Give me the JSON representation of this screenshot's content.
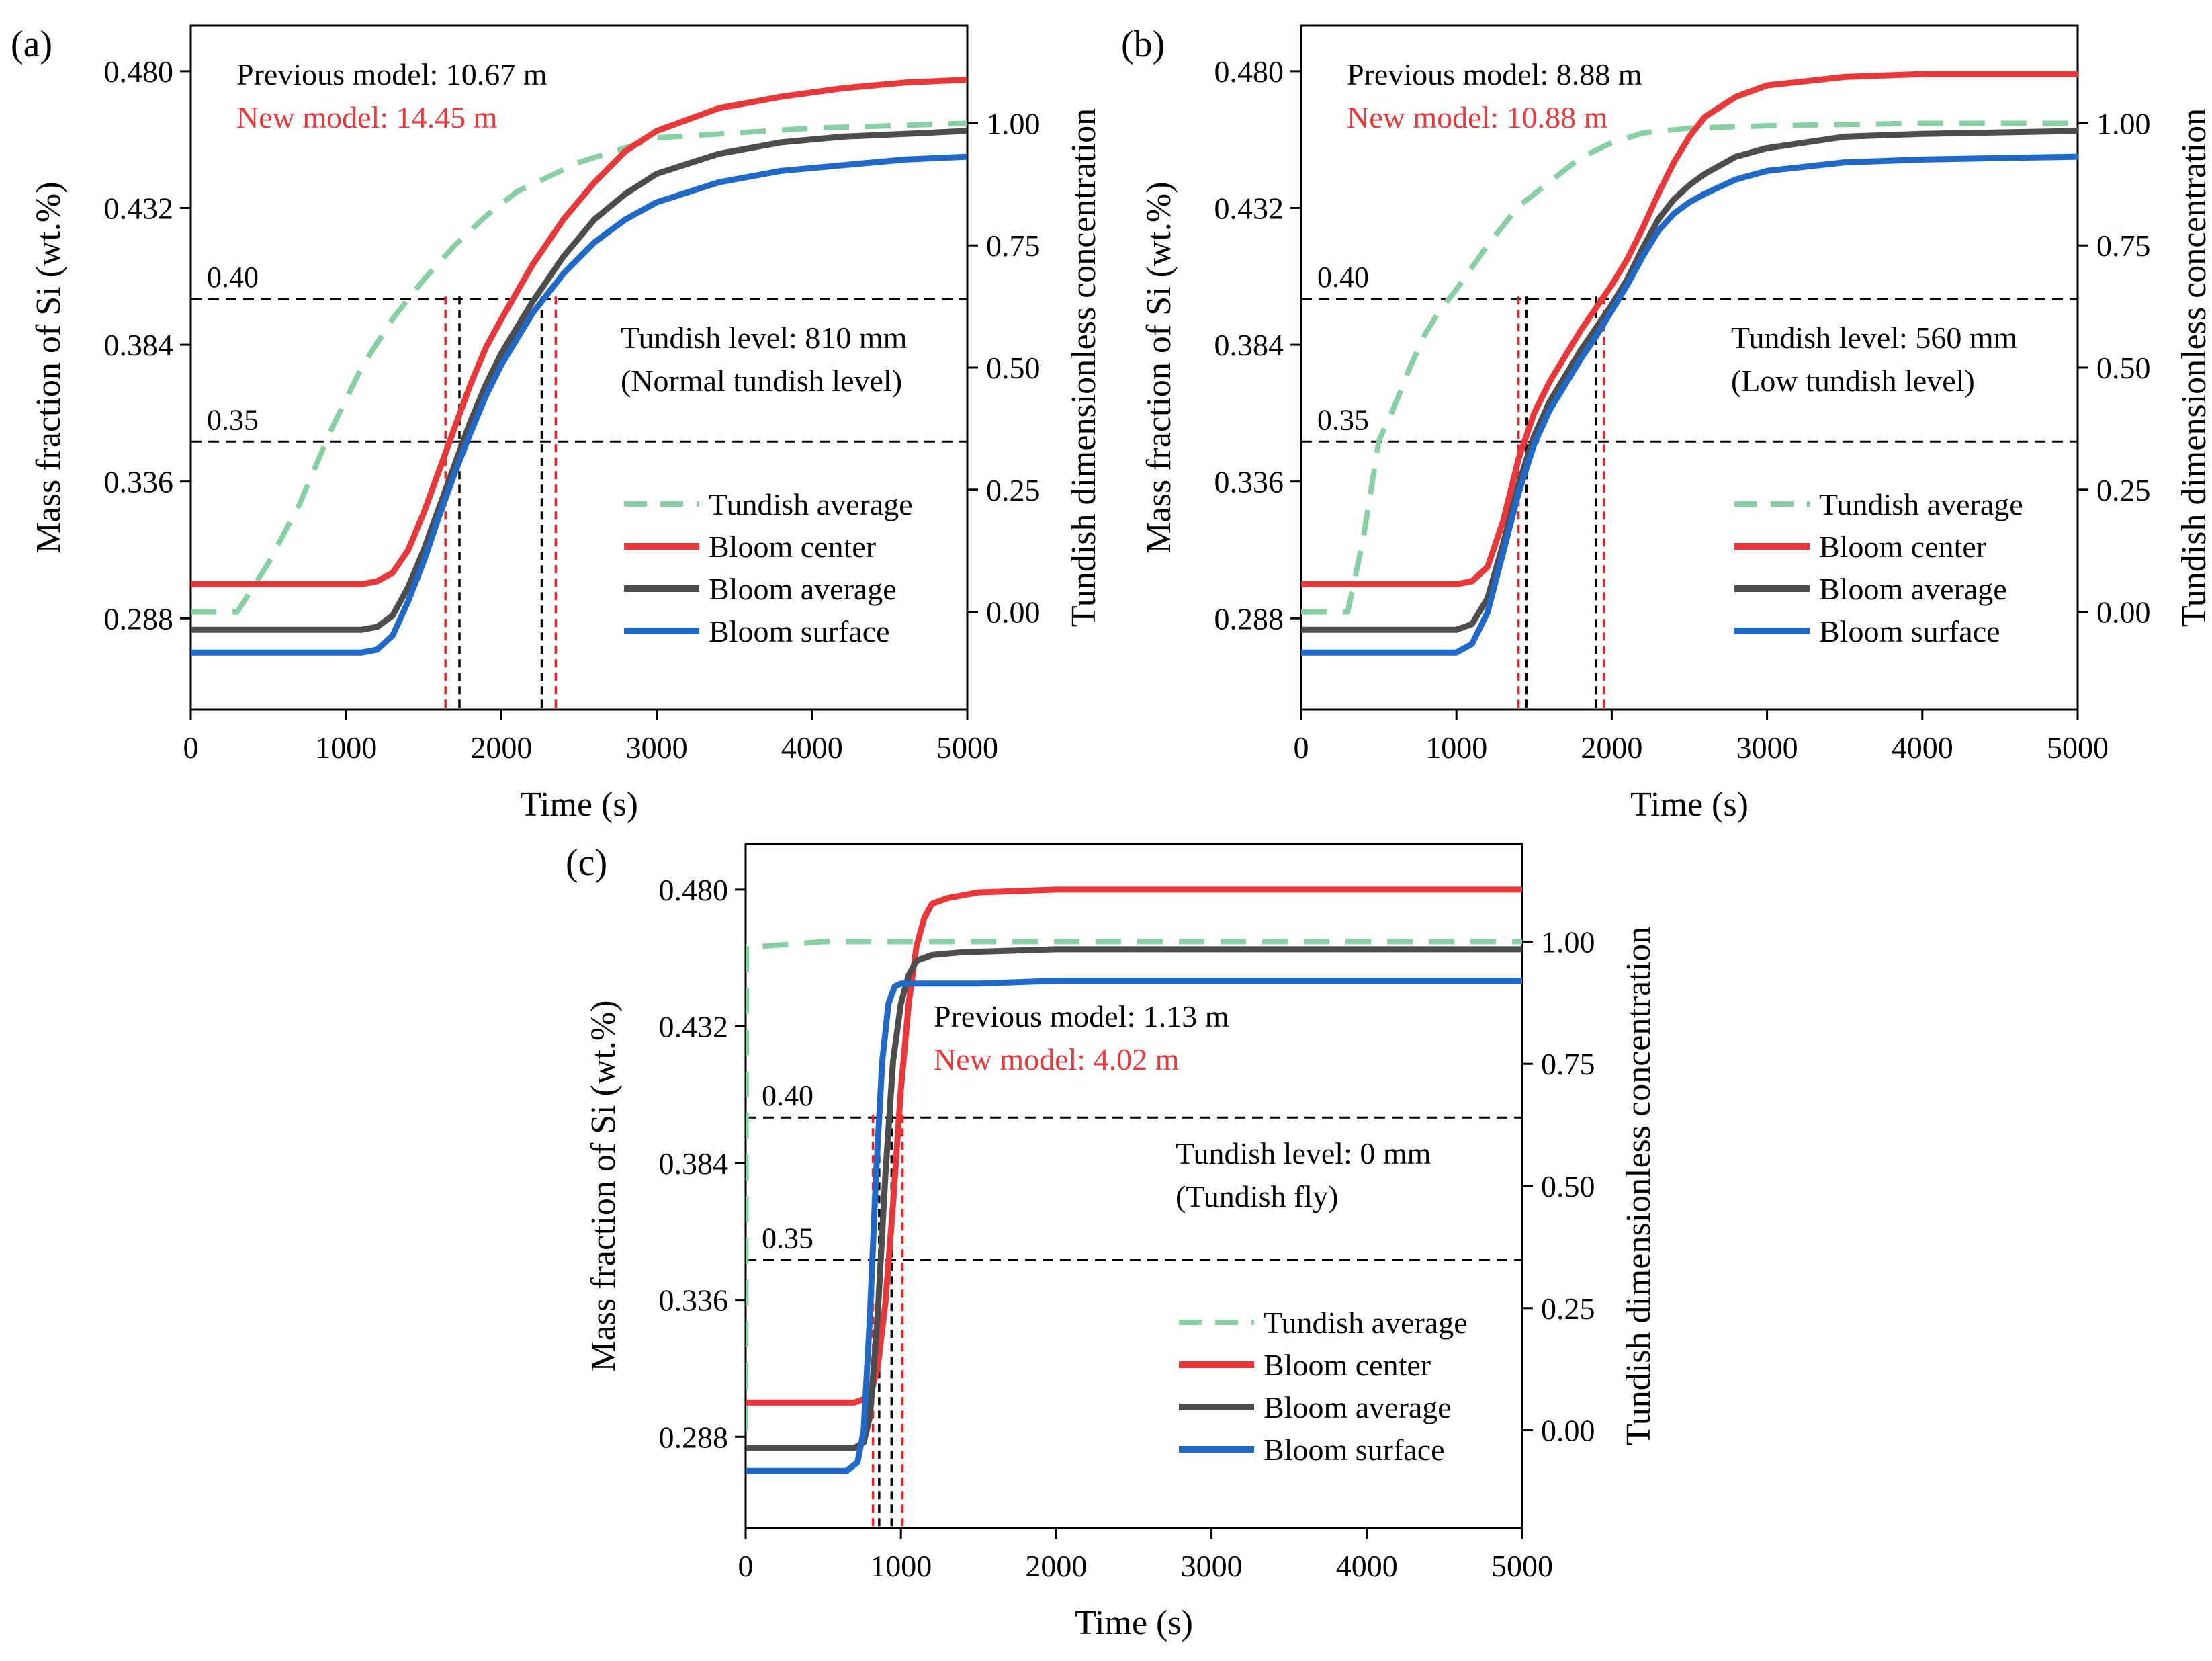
{
  "chart_data": [
    {
      "panel_label": "(a)",
      "type": "line",
      "xlabel": "Time (s)",
      "ylabel": "Mass fraction of Si (wt.%)",
      "ylabel_right": "Tundish dimensionless concentration",
      "xlim": [
        0,
        5000
      ],
      "ylim": [
        0.256,
        0.496
      ],
      "ylim_right": [
        -0.2,
        1.2
      ],
      "xticks": [
        0,
        1000,
        2000,
        3000,
        4000,
        5000
      ],
      "xtick_labels": [
        "0",
        "1000",
        "2000",
        "3000",
        "4000",
        "5000"
      ],
      "yticks": [
        0.288,
        0.336,
        0.384,
        0.432,
        0.48
      ],
      "ytick_labels": [
        "0.288",
        "0.336",
        "0.384",
        "0.432",
        "0.480"
      ],
      "yticks_right": [
        0,
        0.25,
        0.5,
        0.75,
        1.0
      ],
      "ytick_labels_right": [
        "0.00",
        "0.25",
        "0.50",
        "0.75",
        "1.00"
      ],
      "threshold_lines": [
        {
          "y": 0.4,
          "label": "0.40"
        },
        {
          "y": 0.35,
          "label": "0.35"
        }
      ],
      "vertical_markers": [
        {
          "x": 1640,
          "color": "#e8242a"
        },
        {
          "x": 1730,
          "color": "#000000"
        },
        {
          "x": 2260,
          "color": "#000000"
        },
        {
          "x": 2350,
          "color": "#e8242a"
        }
      ],
      "annotations": {
        "previous_model": "Previous model: 10.67 m",
        "new_model": "New model: 14.45 m",
        "tundish_level": "Tundish level: 810 mm",
        "tundish_note": "(Normal tundish level)"
      },
      "legend": [
        "Tundish average",
        "Bloom center",
        "Bloom average",
        "Bloom surface"
      ],
      "legend_position": "lower-right",
      "series": [
        {
          "name": "Tundish average",
          "axis": "right",
          "style": "dashed",
          "color": "#88d0a4",
          "x": [
            0,
            300,
            500,
            700,
            900,
            1100,
            1300,
            1500,
            1700,
            1900,
            2100,
            2300,
            2500,
            2800,
            3000,
            3500,
            4000,
            4500,
            5000
          ],
          "y": [
            0.0,
            0.0,
            0.1,
            0.22,
            0.37,
            0.5,
            0.6,
            0.68,
            0.75,
            0.81,
            0.86,
            0.89,
            0.92,
            0.95,
            0.97,
            0.98,
            0.99,
            0.995,
            1.0
          ]
        },
        {
          "name": "Bloom center",
          "axis": "left",
          "style": "solid",
          "color": "#e8383a",
          "x": [
            0,
            1000,
            1100,
            1200,
            1300,
            1400,
            1500,
            1600,
            1700,
            1800,
            1900,
            2000,
            2200,
            2400,
            2600,
            2800,
            3000,
            3400,
            3800,
            4200,
            4600,
            5000
          ],
          "y": [
            0.3,
            0.3,
            0.3,
            0.301,
            0.304,
            0.312,
            0.325,
            0.34,
            0.355,
            0.37,
            0.383,
            0.393,
            0.412,
            0.428,
            0.441,
            0.452,
            0.459,
            0.467,
            0.471,
            0.474,
            0.476,
            0.477
          ]
        },
        {
          "name": "Bloom average",
          "axis": "left",
          "style": "solid",
          "color": "#4d4d4d",
          "x": [
            0,
            1000,
            1100,
            1200,
            1300,
            1400,
            1500,
            1600,
            1700,
            1800,
            1900,
            2000,
            2200,
            2400,
            2600,
            2800,
            3000,
            3400,
            3800,
            4200,
            4600,
            5000
          ],
          "y": [
            0.284,
            0.284,
            0.284,
            0.285,
            0.289,
            0.299,
            0.312,
            0.327,
            0.342,
            0.357,
            0.37,
            0.381,
            0.399,
            0.415,
            0.428,
            0.437,
            0.444,
            0.451,
            0.455,
            0.457,
            0.458,
            0.459
          ]
        },
        {
          "name": "Bloom surface",
          "axis": "left",
          "style": "solid",
          "color": "#2069c9",
          "x": [
            0,
            1000,
            1100,
            1200,
            1300,
            1400,
            1500,
            1600,
            1700,
            1800,
            1900,
            2000,
            2200,
            2400,
            2600,
            2800,
            3000,
            3400,
            3800,
            4200,
            4600,
            5000
          ],
          "y": [
            0.276,
            0.276,
            0.276,
            0.277,
            0.282,
            0.294,
            0.308,
            0.324,
            0.339,
            0.353,
            0.366,
            0.377,
            0.395,
            0.409,
            0.42,
            0.428,
            0.434,
            0.441,
            0.445,
            0.447,
            0.449,
            0.45
          ]
        }
      ]
    },
    {
      "panel_label": "(b)",
      "type": "line",
      "xlabel": "Time (s)",
      "ylabel": "Mass fraction of Si (wt.%)",
      "ylabel_right": "Tundish dimensionless concentration",
      "xlim": [
        0,
        5000
      ],
      "ylim": [
        0.256,
        0.496
      ],
      "ylim_right": [
        -0.2,
        1.2
      ],
      "xticks": [
        0,
        1000,
        2000,
        3000,
        4000,
        5000
      ],
      "xtick_labels": [
        "0",
        "1000",
        "2000",
        "3000",
        "4000",
        "5000"
      ],
      "yticks": [
        0.288,
        0.336,
        0.384,
        0.432,
        0.48
      ],
      "ytick_labels": [
        "0.288",
        "0.336",
        "0.384",
        "0.432",
        "0.480"
      ],
      "yticks_right": [
        0,
        0.25,
        0.5,
        0.75,
        1.0
      ],
      "ytick_labels_right": [
        "0.00",
        "0.25",
        "0.50",
        "0.75",
        "1.00"
      ],
      "threshold_lines": [
        {
          "y": 0.4,
          "label": "0.40"
        },
        {
          "y": 0.35,
          "label": "0.35"
        }
      ],
      "vertical_markers": [
        {
          "x": 1400,
          "color": "#e8242a"
        },
        {
          "x": 1450,
          "color": "#000000"
        },
        {
          "x": 1900,
          "color": "#000000"
        },
        {
          "x": 1950,
          "color": "#e8242a"
        }
      ],
      "annotations": {
        "previous_model": "Previous model: 8.88 m",
        "new_model": "New model: 10.88 m",
        "tundish_level": "Tundish level: 560 mm",
        "tundish_note": "(Low tundish level)"
      },
      "legend": [
        "Tundish average",
        "Bloom center",
        "Bloom average",
        "Bloom surface"
      ],
      "legend_position": "lower-right",
      "series": [
        {
          "name": "Tundish average",
          "axis": "right",
          "style": "dashed",
          "color": "#88d0a4",
          "x": [
            0,
            300,
            400,
            500,
            600,
            700,
            800,
            900,
            1000,
            1200,
            1400,
            1600,
            1800,
            2000,
            2200,
            2500,
            3000,
            4000,
            5000
          ],
          "y": [
            0.0,
            0.0,
            0.15,
            0.35,
            0.42,
            0.5,
            0.57,
            0.62,
            0.66,
            0.75,
            0.83,
            0.88,
            0.93,
            0.96,
            0.98,
            0.99,
            0.995,
            1.0,
            1.0
          ]
        },
        {
          "name": "Bloom center",
          "axis": "left",
          "style": "solid",
          "color": "#e8383a",
          "x": [
            0,
            1000,
            1100,
            1200,
            1300,
            1400,
            1500,
            1600,
            1700,
            1800,
            1900,
            2000,
            2100,
            2200,
            2300,
            2400,
            2500,
            2600,
            2800,
            3000,
            3500,
            4000,
            5000
          ],
          "y": [
            0.3,
            0.3,
            0.301,
            0.306,
            0.322,
            0.344,
            0.36,
            0.371,
            0.38,
            0.389,
            0.397,
            0.405,
            0.414,
            0.425,
            0.437,
            0.448,
            0.457,
            0.464,
            0.471,
            0.475,
            0.478,
            0.479,
            0.479
          ]
        },
        {
          "name": "Bloom average",
          "axis": "left",
          "style": "solid",
          "color": "#4d4d4d",
          "x": [
            0,
            1000,
            1100,
            1200,
            1300,
            1400,
            1500,
            1600,
            1700,
            1800,
            1900,
            2000,
            2100,
            2200,
            2300,
            2400,
            2500,
            2600,
            2800,
            3000,
            3500,
            4000,
            5000
          ],
          "y": [
            0.284,
            0.284,
            0.286,
            0.295,
            0.314,
            0.335,
            0.352,
            0.364,
            0.373,
            0.382,
            0.39,
            0.398,
            0.407,
            0.418,
            0.428,
            0.435,
            0.44,
            0.444,
            0.45,
            0.453,
            0.457,
            0.458,
            0.459
          ]
        },
        {
          "name": "Bloom surface",
          "axis": "left",
          "style": "solid",
          "color": "#2069c9",
          "x": [
            0,
            1000,
            1100,
            1200,
            1300,
            1400,
            1500,
            1600,
            1700,
            1800,
            1900,
            2000,
            2100,
            2200,
            2300,
            2400,
            2500,
            2600,
            2800,
            3000,
            3500,
            4000,
            5000
          ],
          "y": [
            0.276,
            0.276,
            0.279,
            0.29,
            0.311,
            0.332,
            0.349,
            0.361,
            0.37,
            0.379,
            0.387,
            0.396,
            0.405,
            0.415,
            0.424,
            0.43,
            0.434,
            0.437,
            0.442,
            0.445,
            0.448,
            0.449,
            0.45
          ]
        }
      ]
    },
    {
      "panel_label": "(c)",
      "type": "line",
      "xlabel": "Time (s)",
      "ylabel": "Mass fraction of Si (wt.%)",
      "ylabel_right": "Tundish dimensionless concentration",
      "xlim": [
        0,
        5000
      ],
      "ylim": [
        0.256,
        0.496
      ],
      "ylim_right": [
        -0.2,
        1.2
      ],
      "xticks": [
        0,
        1000,
        2000,
        3000,
        4000,
        5000
      ],
      "xtick_labels": [
        "0",
        "1000",
        "2000",
        "3000",
        "4000",
        "5000"
      ],
      "yticks": [
        0.288,
        0.336,
        0.384,
        0.432,
        0.48
      ],
      "ytick_labels": [
        "0.288",
        "0.336",
        "0.384",
        "0.432",
        "0.480"
      ],
      "yticks_right": [
        0,
        0.25,
        0.5,
        0.75,
        1.0
      ],
      "ytick_labels_right": [
        "0.00",
        "0.25",
        "0.50",
        "0.75",
        "1.00"
      ],
      "threshold_lines": [
        {
          "y": 0.4,
          "label": "0.40"
        },
        {
          "y": 0.35,
          "label": "0.35"
        }
      ],
      "vertical_markers": [
        {
          "x": 820,
          "color": "#e8242a"
        },
        {
          "x": 860,
          "color": "#000000"
        },
        {
          "x": 940,
          "color": "#000000"
        },
        {
          "x": 1010,
          "color": "#e8242a"
        }
      ],
      "annotations": {
        "previous_model": "Previous model: 1.13 m",
        "new_model": "New model: 4.02 m",
        "tundish_level": "Tundish level: 0 mm",
        "tundish_note": "(Tundish fly)"
      },
      "legend": [
        "Tundish average",
        "Bloom center",
        "Bloom average",
        "Bloom surface"
      ],
      "legend_position": "lower-right",
      "series": [
        {
          "name": "Tundish average",
          "axis": "right",
          "style": "dashed",
          "color": "#88d0a4",
          "x": [
            0,
            5,
            15,
            40,
            100,
            500,
            1000,
            3000,
            5000
          ],
          "y": [
            0.0,
            0.99,
            0.99,
            0.99,
            0.99,
            1.0,
            1.0,
            1.0,
            1.0
          ]
        },
        {
          "name": "Bloom center",
          "axis": "left",
          "style": "solid",
          "color": "#e8383a",
          "x": [
            0,
            700,
            800,
            850,
            900,
            950,
            1000,
            1050,
            1100,
            1150,
            1200,
            1300,
            1500,
            2000,
            3000,
            5000
          ],
          "y": [
            0.3,
            0.3,
            0.302,
            0.312,
            0.335,
            0.37,
            0.41,
            0.44,
            0.46,
            0.47,
            0.475,
            0.477,
            0.479,
            0.48,
            0.48,
            0.48
          ]
        },
        {
          "name": "Bloom average",
          "axis": "left",
          "style": "solid",
          "color": "#4d4d4d",
          "x": [
            0,
            700,
            760,
            800,
            850,
            900,
            950,
            1000,
            1050,
            1100,
            1200,
            1400,
            2000,
            3000,
            5000
          ],
          "y": [
            0.284,
            0.284,
            0.286,
            0.295,
            0.33,
            0.38,
            0.42,
            0.44,
            0.45,
            0.455,
            0.457,
            0.458,
            0.459,
            0.459,
            0.459
          ]
        },
        {
          "name": "Bloom surface",
          "axis": "left",
          "style": "solid",
          "color": "#2069c9",
          "x": [
            0,
            650,
            720,
            760,
            800,
            840,
            880,
            920,
            960,
            1000,
            1100,
            1500,
            2000,
            5000
          ],
          "y": [
            0.276,
            0.276,
            0.279,
            0.29,
            0.33,
            0.38,
            0.42,
            0.44,
            0.446,
            0.447,
            0.447,
            0.447,
            0.448,
            0.448
          ]
        }
      ]
    }
  ]
}
